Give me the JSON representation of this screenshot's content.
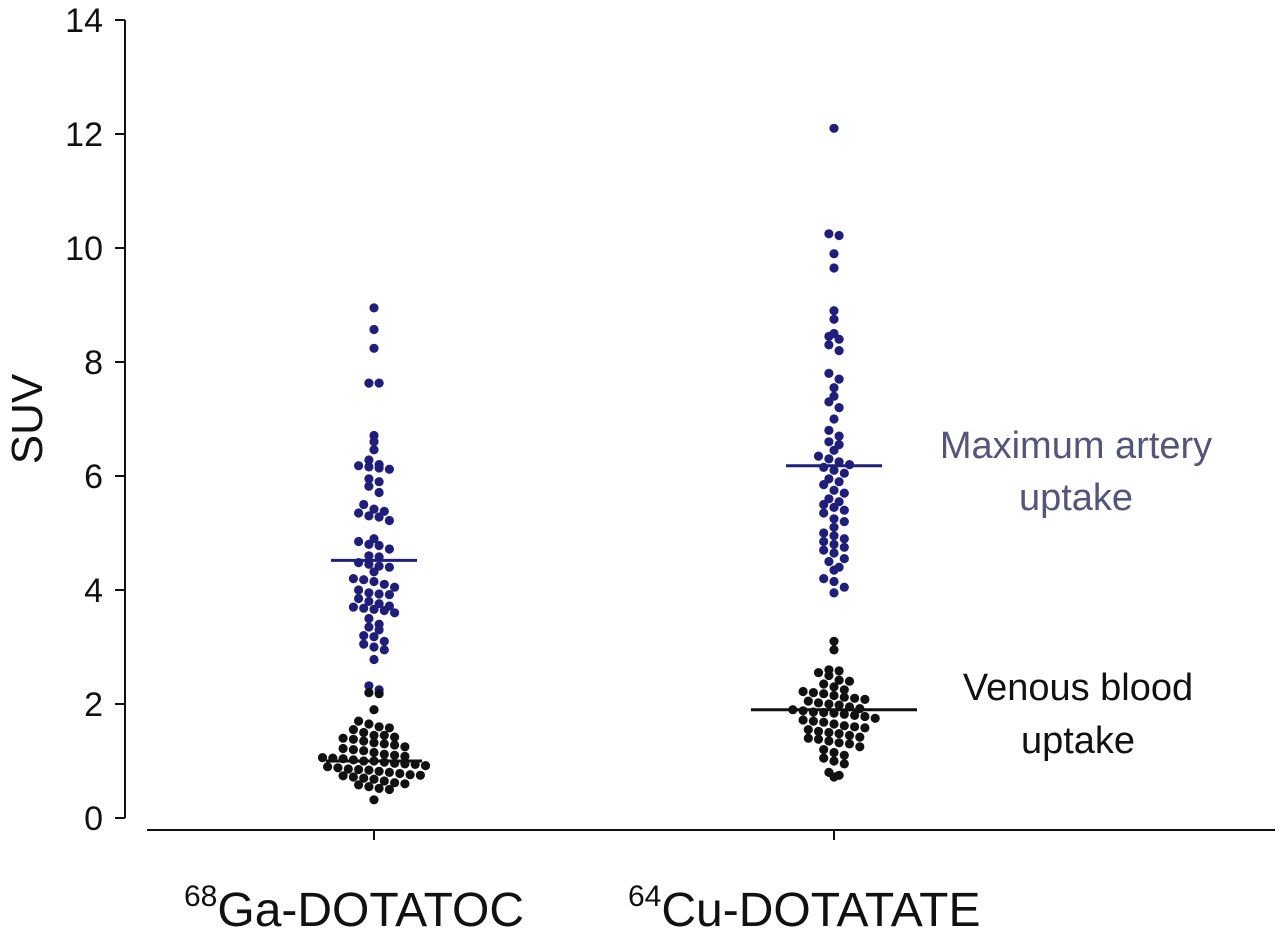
{
  "chart_data": {
    "type": "scatter",
    "ylabel": "SUV",
    "ylim": [
      0,
      14
    ],
    "yticks": [
      0,
      2,
      4,
      6,
      8,
      10,
      12,
      14
    ],
    "grid": false,
    "categories": [
      {
        "sup": "68",
        "name": "Ga-DOTATOC"
      },
      {
        "sup": "64",
        "name": "Cu-DOTATATE"
      }
    ],
    "colors": {
      "artery": "#1f1f7a",
      "venous": "#111111",
      "artery_text": "#55557a",
      "venous_text": "#111111"
    },
    "series": [
      {
        "key": "artery",
        "legend": [
          "Maximum artery",
          "uptake"
        ],
        "medians": [
          4.52,
          6.18
        ],
        "values": [
          [
            8.95,
            8.57,
            8.24,
            7.63,
            7.63,
            6.71,
            6.6,
            6.46,
            6.28,
            6.2,
            6.18,
            6.16,
            6.14,
            6.12,
            5.95,
            5.9,
            5.82,
            5.71,
            5.5,
            5.42,
            5.38,
            5.35,
            5.3,
            5.28,
            5.22,
            4.9,
            4.85,
            4.8,
            4.78,
            4.72,
            4.6,
            4.58,
            4.48,
            4.45,
            4.42,
            4.4,
            4.32,
            4.2,
            4.18,
            4.15,
            4.1,
            4.05,
            4.0,
            3.95,
            3.93,
            3.92,
            3.85,
            3.8,
            3.76,
            3.72,
            3.7,
            3.68,
            3.66,
            3.64,
            3.6,
            3.5,
            3.4,
            3.35,
            3.3,
            3.2,
            3.18,
            3.1,
            3.05,
            3.0,
            2.95,
            2.78,
            2.32,
            2.25
          ],
          [
            12.1,
            10.25,
            10.22,
            9.9,
            9.65,
            8.9,
            8.75,
            8.5,
            8.45,
            8.4,
            8.3,
            8.2,
            7.8,
            7.7,
            7.55,
            7.4,
            7.3,
            7.2,
            7.0,
            6.8,
            6.7,
            6.6,
            6.55,
            6.45,
            6.35,
            6.3,
            6.25,
            6.2,
            6.15,
            6.1,
            6.05,
            5.95,
            5.9,
            5.85,
            5.75,
            5.7,
            5.6,
            5.55,
            5.5,
            5.45,
            5.4,
            5.35,
            5.25,
            5.2,
            5.1,
            5.0,
            4.95,
            4.9,
            4.85,
            4.8,
            4.75,
            4.7,
            4.65,
            4.55,
            4.5,
            4.4,
            4.35,
            4.2,
            4.15,
            4.05,
            3.95
          ]
        ]
      },
      {
        "key": "venous",
        "legend": [
          "Venous blood",
          "uptake"
        ],
        "medians": [
          1.0,
          1.9
        ],
        "values": [
          [
            2.2,
            2.18,
            1.9,
            1.7,
            1.65,
            1.6,
            1.58,
            1.55,
            1.5,
            1.45,
            1.45,
            1.42,
            1.4,
            1.38,
            1.35,
            1.32,
            1.3,
            1.28,
            1.25,
            1.22,
            1.2,
            1.18,
            1.15,
            1.12,
            1.1,
            1.08,
            1.06,
            1.05,
            1.04,
            1.02,
            1.0,
            1.0,
            0.98,
            0.96,
            0.95,
            0.94,
            0.92,
            0.9,
            0.88,
            0.86,
            0.85,
            0.84,
            0.82,
            0.8,
            0.78,
            0.76,
            0.75,
            0.74,
            0.72,
            0.7,
            0.68,
            0.65,
            0.62,
            0.6,
            0.58,
            0.55,
            0.52,
            0.5,
            0.32
          ],
          [
            3.1,
            2.95,
            2.6,
            2.58,
            2.55,
            2.5,
            2.42,
            2.4,
            2.35,
            2.3,
            2.25,
            2.22,
            2.2,
            2.18,
            2.15,
            2.12,
            2.1,
            2.08,
            2.05,
            2.02,
            2.0,
            1.98,
            1.95,
            1.92,
            1.9,
            1.88,
            1.86,
            1.85,
            1.84,
            1.82,
            1.8,
            1.78,
            1.75,
            1.72,
            1.7,
            1.68,
            1.65,
            1.62,
            1.6,
            1.58,
            1.55,
            1.52,
            1.5,
            1.48,
            1.45,
            1.42,
            1.4,
            1.38,
            1.35,
            1.32,
            1.3,
            1.25,
            1.2,
            1.15,
            1.1,
            1.05,
            1.0,
            0.95,
            0.8,
            0.75,
            0.72
          ]
        ]
      }
    ]
  }
}
